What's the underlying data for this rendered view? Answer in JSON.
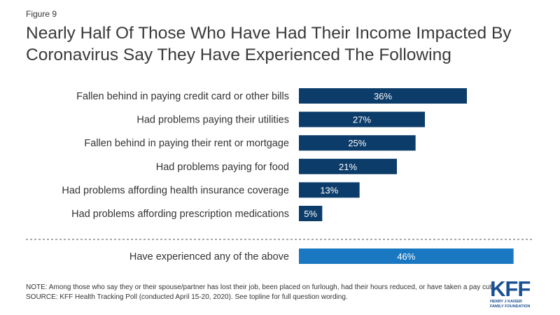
{
  "figure_label": "Figure 9",
  "title": "Nearly Half Of Those Who Have Had Their Income Impacted By Coronavirus Say They Have Experienced The Following",
  "chart_data": {
    "type": "bar",
    "orientation": "horizontal",
    "categories": [
      "Fallen behind in paying credit card or other bills",
      "Had problems paying their utilities",
      "Fallen behind in paying their rent or mortgage",
      "Had problems paying for food",
      "Had problems affording health insurance coverage",
      "Had problems affording prescription medications"
    ],
    "values": [
      36,
      27,
      25,
      21,
      13,
      5
    ],
    "value_labels": [
      "36%",
      "27%",
      "25%",
      "21%",
      "13%",
      "5%"
    ],
    "summary": {
      "category": "Have experienced any of the above",
      "value": 46,
      "value_label": "46%"
    },
    "xlim": [
      0,
      100
    ],
    "colors": {
      "bars": "#0b3c6a",
      "summary_bar": "#1a78c2",
      "divider": "#555555"
    }
  },
  "note": {
    "line1": "NOTE: Among those who say they or their spouse/partner has lost their job, been placed on furlough,  had their hours reduced, or have taken a pay cut.",
    "line2": "SOURCE: KFF Health Tracking Poll (conducted April 15-20, 2020). See topline for full question wording."
  },
  "logo": {
    "mark": "KFF",
    "line1": "HENRY J KAISER",
    "line2": "FAMILY FOUNDATION"
  }
}
